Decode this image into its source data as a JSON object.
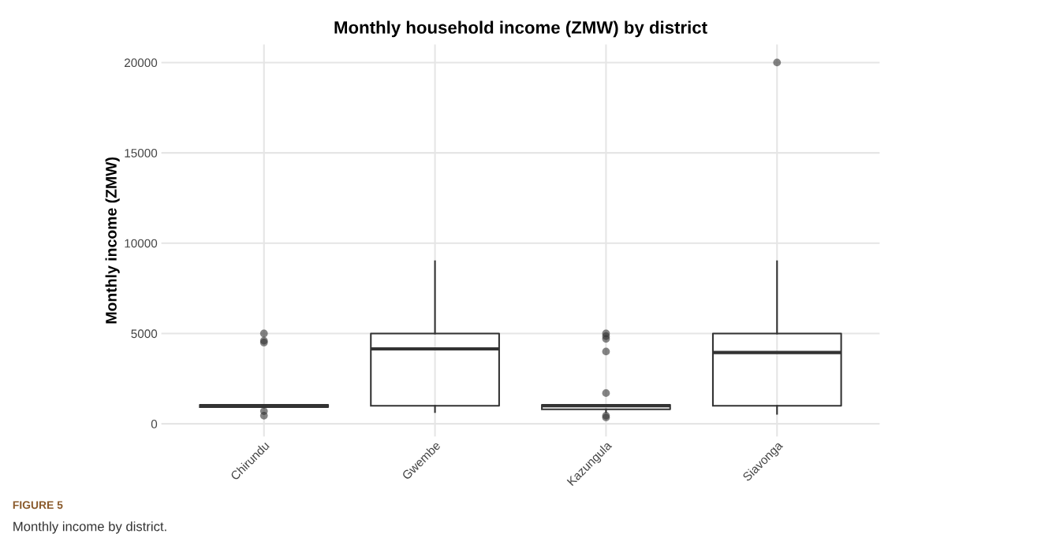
{
  "chart_data": {
    "type": "box",
    "title": "Monthly household income (ZMW) by district",
    "ylabel": "Monthly income (ZMW)",
    "categories": [
      "Chirundu",
      "Gwembe",
      "Kazungula",
      "Siavonga"
    ],
    "boxes": [
      {
        "low": 900,
        "q1": 920,
        "median": 1000,
        "q3": 1050,
        "high": 1050,
        "outliers": [
          5000,
          4600,
          4500,
          700,
          450
        ]
      },
      {
        "low": 650,
        "q1": 1000,
        "median": 4150,
        "q3": 5000,
        "high": 9000
      },
      {
        "low": 650,
        "q1": 800,
        "median": 1000,
        "q3": 1050,
        "high": 1050,
        "outliers": [
          5000,
          4850,
          4700,
          4000,
          1700,
          450,
          350
        ]
      },
      {
        "low": 550,
        "q1": 1000,
        "median": 3950,
        "q3": 5000,
        "high": 9000,
        "outliers": [
          20000
        ]
      }
    ],
    "ylim": [
      -700,
      21000
    ],
    "yticks": [
      0,
      5000,
      10000,
      15000,
      20000
    ],
    "grid": true,
    "annotations": [
      "FIGURE 5",
      "Monthly income by district."
    ]
  }
}
